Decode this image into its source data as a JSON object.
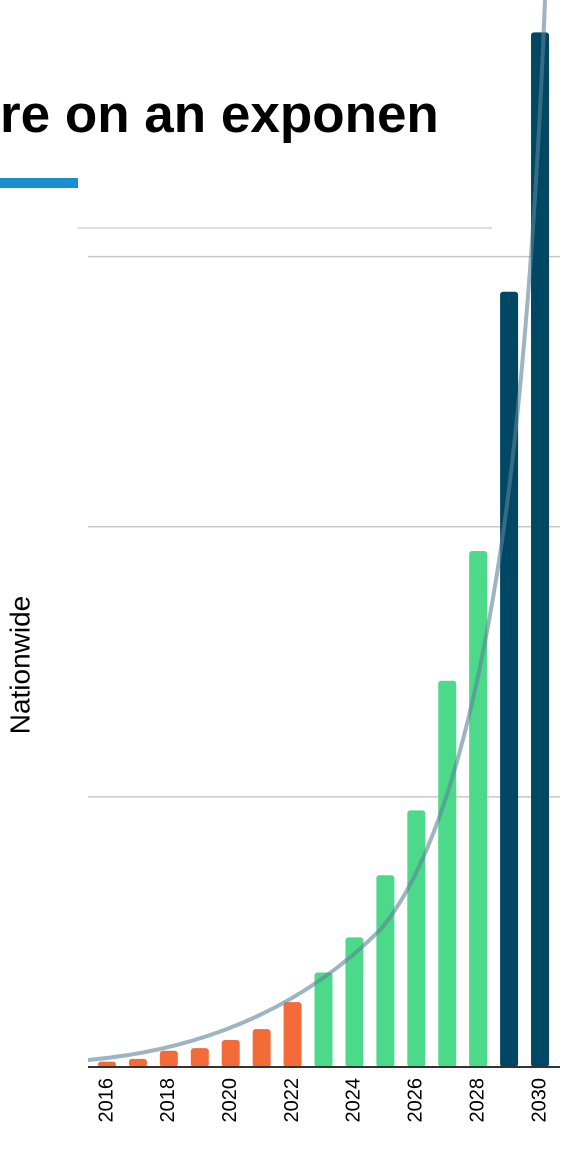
{
  "chart_data": {
    "type": "bar",
    "title": "re on an exponen",
    "y_label": "Nationwide",
    "categories": [
      "2016",
      null,
      "2018",
      null,
      "2020",
      null,
      "2022",
      null,
      "2024",
      null,
      "2026",
      null,
      "2028",
      null,
      "2030"
    ],
    "values": [
      0.02,
      0.03,
      0.06,
      0.07,
      0.1,
      0.14,
      0.24,
      0.35,
      0.48,
      0.71,
      0.95,
      1.43,
      1.91,
      2.87,
      3.83
    ],
    "colors": [
      "#f26b38",
      "#f26b38",
      "#f26b38",
      "#f26b38",
      "#f26b38",
      "#f26b38",
      "#f26b38",
      "#4cd98a",
      "#4cd98a",
      "#4cd98a",
      "#4cd98a",
      "#4cd98a",
      "#4cd98a",
      "#004764",
      "#004764"
    ],
    "ylim": [
      0,
      3.95
    ],
    "gridlines": [
      1,
      2,
      3
    ],
    "grid": true
  }
}
